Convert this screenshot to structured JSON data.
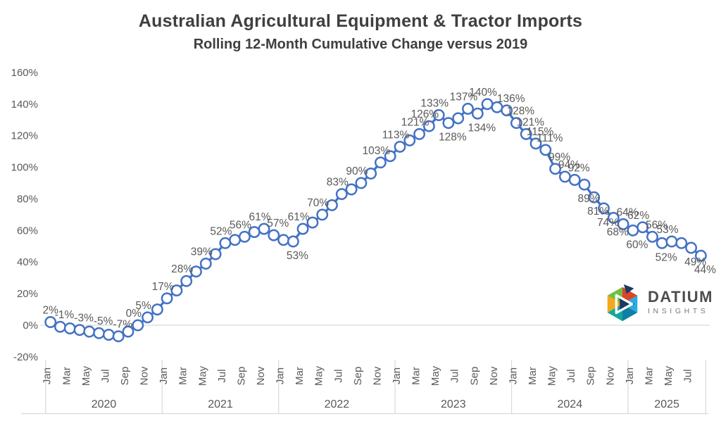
{
  "logo": {
    "brand": "DATIUM",
    "tagline": "INSIGHTS"
  },
  "chart_data": {
    "type": "line",
    "title": "Australian Agricultural Equipment & Tractor Imports",
    "subtitle": "Rolling 12-Month Cumulative Change versus 2019",
    "y_axis": {
      "min": -20,
      "max": 160,
      "step": 20,
      "format": "percent",
      "ticks": [
        "160%",
        "140%",
        "120%",
        "100%",
        "80%",
        "60%",
        "40%",
        "20%",
        "0%",
        "-20%"
      ]
    },
    "x_axis": {
      "years": [
        {
          "label": "2020",
          "months_shown": [
            "Jan",
            "Mar",
            "May",
            "Jul",
            "Sep",
            "Nov"
          ]
        },
        {
          "label": "2021",
          "months_shown": [
            "Jan",
            "Mar",
            "May",
            "Jul",
            "Sep",
            "Nov"
          ]
        },
        {
          "label": "2022",
          "months_shown": [
            "Jan",
            "Mar",
            "May",
            "Jul",
            "Sep",
            "Nov"
          ]
        },
        {
          "label": "2023",
          "months_shown": [
            "Jan",
            "Mar",
            "May",
            "Jul",
            "Sep",
            "Nov"
          ]
        },
        {
          "label": "2024",
          "months_shown": [
            "Jan",
            "Mar",
            "May",
            "Jul",
            "Sep",
            "Nov"
          ]
        },
        {
          "label": "2025",
          "months_shown": [
            "Jan",
            "Mar",
            "May",
            "Jul"
          ]
        }
      ]
    },
    "grid": {
      "zero_line_only": true
    },
    "legend": "none",
    "colors": {
      "line": "#4472C4",
      "marker_fill": "#ffffff",
      "data_label": "#595959",
      "axis_text": "#595959",
      "grid_line": "#d9d9d9",
      "title_text": "#3f3f3f"
    },
    "series_name": "Rolling 12-month cumulative change vs 2019",
    "points": [
      {
        "m": "Jan 2020",
        "v": 2,
        "label": "2%",
        "side": "above"
      },
      {
        "m": "Feb 2020",
        "v": -1,
        "label": "-1%",
        "side": "above"
      },
      {
        "m": "Mar 2020",
        "v": -2,
        "label": null,
        "side": null
      },
      {
        "m": "Apr 2020",
        "v": -3,
        "label": "-3%",
        "side": "above"
      },
      {
        "m": "May 2020",
        "v": -4,
        "label": null,
        "side": null
      },
      {
        "m": "Jun 2020",
        "v": -5,
        "label": "-5%",
        "side": "above"
      },
      {
        "m": "Jul 2020",
        "v": -6,
        "label": null,
        "side": null
      },
      {
        "m": "Aug 2020",
        "v": -7,
        "label": "-7%",
        "side": "above"
      },
      {
        "m": "Sep 2020",
        "v": -4,
        "label": null,
        "side": null
      },
      {
        "m": "Oct 2020",
        "v": 0,
        "label": "0%",
        "side": "above"
      },
      {
        "m": "Nov 2020",
        "v": 5,
        "label": "5%",
        "side": "above"
      },
      {
        "m": "Dec 2020",
        "v": 10,
        "label": null,
        "side": null
      },
      {
        "m": "Jan 2021",
        "v": 17,
        "label": "17%",
        "side": "above"
      },
      {
        "m": "Feb 2021",
        "v": 22,
        "label": null,
        "side": null
      },
      {
        "m": "Mar 2021",
        "v": 28,
        "label": "28%",
        "side": "above"
      },
      {
        "m": "Apr 2021",
        "v": 34,
        "label": null,
        "side": null
      },
      {
        "m": "May 2021",
        "v": 39,
        "label": "39%",
        "side": "above"
      },
      {
        "m": "Jun 2021",
        "v": 45,
        "label": null,
        "side": null
      },
      {
        "m": "Jul 2021",
        "v": 52,
        "label": "52%",
        "side": "above"
      },
      {
        "m": "Aug 2021",
        "v": 54,
        "label": null,
        "side": null
      },
      {
        "m": "Sep 2021",
        "v": 56,
        "label": "56%",
        "side": "above"
      },
      {
        "m": "Oct 2021",
        "v": 59,
        "label": null,
        "side": null
      },
      {
        "m": "Nov 2021",
        "v": 61,
        "label": "61%",
        "side": "above"
      },
      {
        "m": "Dec 2021",
        "v": 57,
        "label": "57%",
        "side": "above"
      },
      {
        "m": "Jan 2022",
        "v": 54,
        "label": null,
        "side": null
      },
      {
        "m": "Feb 2022",
        "v": 53,
        "label": "53%",
        "side": "below"
      },
      {
        "m": "Mar 2022",
        "v": 61,
        "label": "61%",
        "side": "above"
      },
      {
        "m": "Apr 2022",
        "v": 65,
        "label": null,
        "side": null
      },
      {
        "m": "May 2022",
        "v": 70,
        "label": "70%",
        "side": "above"
      },
      {
        "m": "Jun 2022",
        "v": 76,
        "label": null,
        "side": null
      },
      {
        "m": "Jul 2022",
        "v": 83,
        "label": "83%",
        "side": "above"
      },
      {
        "m": "Aug 2022",
        "v": 86,
        "label": null,
        "side": null
      },
      {
        "m": "Sep 2022",
        "v": 90,
        "label": "90%",
        "side": "above"
      },
      {
        "m": "Oct 2022",
        "v": 96,
        "label": null,
        "side": null
      },
      {
        "m": "Nov 2022",
        "v": 103,
        "label": "103%",
        "side": "above"
      },
      {
        "m": "Dec 2022",
        "v": 107,
        "label": null,
        "side": null
      },
      {
        "m": "Jan 2023",
        "v": 113,
        "label": "113%",
        "side": "above"
      },
      {
        "m": "Feb 2023",
        "v": 117,
        "label": null,
        "side": null
      },
      {
        "m": "Mar 2023",
        "v": 121,
        "label": "121%",
        "side": "above"
      },
      {
        "m": "Apr 2023",
        "v": 126,
        "label": "126%",
        "side": "above"
      },
      {
        "m": "May 2023",
        "v": 133,
        "label": "133%",
        "side": "above"
      },
      {
        "m": "Jun 2023",
        "v": 128,
        "label": "128%",
        "side": "below"
      },
      {
        "m": "Jul 2023",
        "v": 131,
        "label": null,
        "side": null
      },
      {
        "m": "Aug 2023",
        "v": 137,
        "label": "137%",
        "side": "above"
      },
      {
        "m": "Sep 2023",
        "v": 134,
        "label": "134%",
        "side": "below"
      },
      {
        "m": "Oct 2023",
        "v": 140,
        "label": "140%",
        "side": "above"
      },
      {
        "m": "Nov 2023",
        "v": 138,
        "label": null,
        "side": null
      },
      {
        "m": "Dec 2023",
        "v": 136,
        "label": "136%",
        "side": "above"
      },
      {
        "m": "Jan 2024",
        "v": 128,
        "label": "128%",
        "side": "above"
      },
      {
        "m": "Feb 2024",
        "v": 121,
        "label": "121%",
        "side": "above"
      },
      {
        "m": "Mar 2024",
        "v": 115,
        "label": "115%",
        "side": "above"
      },
      {
        "m": "Apr 2024",
        "v": 111,
        "label": "111%",
        "side": "above"
      },
      {
        "m": "May 2024",
        "v": 99,
        "label": "99%",
        "side": "above"
      },
      {
        "m": "Jun 2024",
        "v": 94,
        "label": "94%",
        "side": "above"
      },
      {
        "m": "Jul 2024",
        "v": 92,
        "label": "92%",
        "side": "above"
      },
      {
        "m": "Aug 2024",
        "v": 89,
        "label": "89%",
        "side": "below"
      },
      {
        "m": "Sep 2024",
        "v": 81,
        "label": "81%",
        "side": "below"
      },
      {
        "m": "Oct 2024",
        "v": 74,
        "label": "74%",
        "side": "below"
      },
      {
        "m": "Nov 2024",
        "v": 68,
        "label": "68%",
        "side": "below"
      },
      {
        "m": "Dec 2024",
        "v": 64,
        "label": "64%",
        "side": "above"
      },
      {
        "m": "Jan 2025",
        "v": 60,
        "label": "60%",
        "side": "below"
      },
      {
        "m": "Feb 2025",
        "v": 62,
        "label": "62%",
        "side": "above"
      },
      {
        "m": "Mar 2025",
        "v": 56,
        "label": "56%",
        "side": "above"
      },
      {
        "m": "Apr 2025",
        "v": 52,
        "label": "52%",
        "side": "below"
      },
      {
        "m": "May 2025",
        "v": 53,
        "label": "53%",
        "side": "above"
      },
      {
        "m": "Jun 2025",
        "v": 52,
        "label": null,
        "side": null
      },
      {
        "m": "Jul 2025",
        "v": 49,
        "label": "49%",
        "side": "below"
      },
      {
        "m": "Aug 2025",
        "v": 44,
        "label": "44%",
        "side": "below"
      }
    ]
  }
}
